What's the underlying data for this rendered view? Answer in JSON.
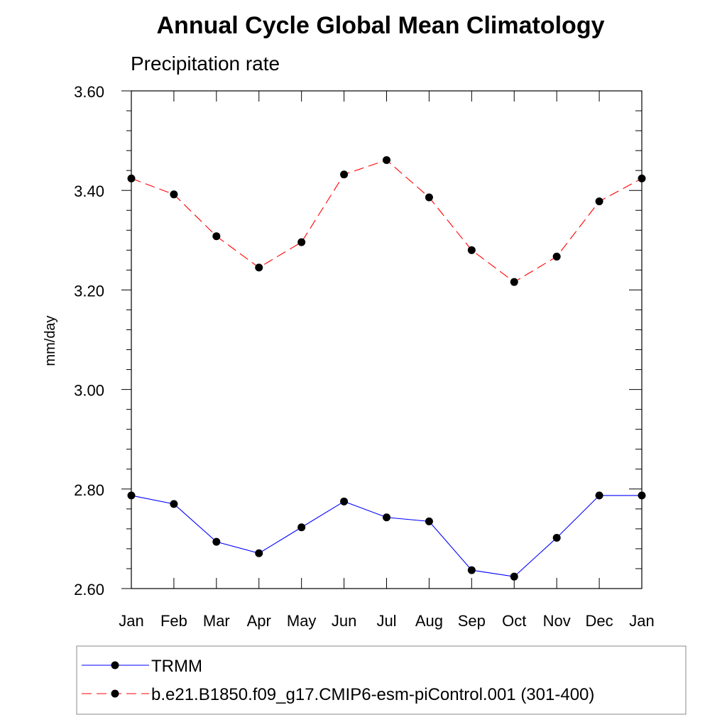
{
  "chart_data": {
    "type": "line",
    "title": "Annual Cycle Global Mean Climatology",
    "subtitle": "Precipitation rate",
    "ylabel": "mm/day",
    "xlabel": "",
    "categories": [
      "Jan",
      "Feb",
      "Mar",
      "Apr",
      "May",
      "Jun",
      "Jul",
      "Aug",
      "Sep",
      "Oct",
      "Nov",
      "Dec",
      "Jan"
    ],
    "ylim": [
      2.6,
      3.6
    ],
    "yticks": [
      "3.60",
      "3.40",
      "3.20",
      "3.00",
      "2.80",
      "2.60"
    ],
    "ytick_values": [
      3.6,
      3.4,
      3.2,
      3.0,
      2.8,
      2.6
    ],
    "grid": false,
    "legend_position": "bottom",
    "series": [
      {
        "name": "TRMM",
        "color": "#0000ff",
        "line_style": "solid",
        "values": [
          2.787,
          2.77,
          2.694,
          2.671,
          2.723,
          2.775,
          2.743,
          2.735,
          2.637,
          2.624,
          2.702,
          2.787,
          2.787
        ]
      },
      {
        "name": "b.e21.B1850.f09_g17.CMIP6-esm-piControl.001 (301-400)",
        "color": "#ff0000",
        "line_style": "dashed",
        "values": [
          3.424,
          3.392,
          3.308,
          3.245,
          3.296,
          3.432,
          3.461,
          3.386,
          3.28,
          3.216,
          3.267,
          3.378,
          3.424
        ]
      }
    ]
  }
}
